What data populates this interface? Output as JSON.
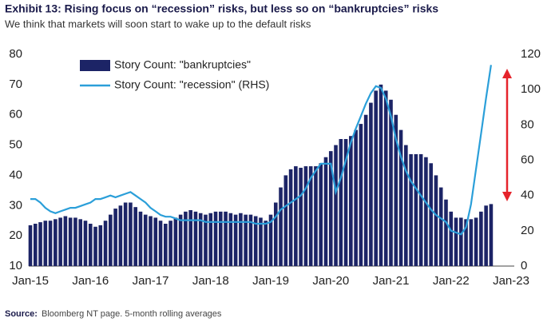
{
  "chart_data": {
    "type": "bar",
    "title": "Exhibit 13: Rising focus on “recession” risks, but less so on “bankruptcies” risks",
    "subtitle": "We think that markets will soon start to wake up to the default risks",
    "categories": [
      "Jan-15",
      null,
      null,
      null,
      null,
      null,
      null,
      null,
      null,
      null,
      null,
      null,
      "Jan-16",
      null,
      null,
      null,
      null,
      null,
      null,
      null,
      null,
      null,
      null,
      null,
      "Jan-17",
      null,
      null,
      null,
      null,
      null,
      null,
      null,
      null,
      null,
      null,
      null,
      "Jan-18",
      null,
      null,
      null,
      null,
      null,
      null,
      null,
      null,
      null,
      null,
      null,
      "Jan-19",
      null,
      null,
      null,
      null,
      null,
      null,
      null,
      null,
      null,
      null,
      null,
      "Jan-20",
      null,
      null,
      null,
      null,
      null,
      null,
      null,
      null,
      null,
      null,
      null,
      "Jan-21",
      null,
      null,
      null,
      null,
      null,
      null,
      null,
      null,
      null,
      null,
      null,
      "Jan-22",
      null,
      null,
      null,
      null,
      null,
      null,
      null,
      null,
      null,
      null,
      null,
      "Jan-23"
    ],
    "series": [
      {
        "name": "Story Count: \"bankruptcies\"",
        "type": "bar",
        "color": "#1c2466",
        "values": [
          23.5,
          24,
          24.5,
          25,
          25,
          25.5,
          26,
          26.5,
          26,
          26,
          25.5,
          25,
          24,
          23,
          23.5,
          25,
          27,
          29,
          30,
          31,
          31,
          29.5,
          28,
          27,
          26.5,
          26,
          25,
          24,
          25,
          26,
          27,
          28,
          28.5,
          28,
          27.5,
          27,
          27.5,
          28,
          28,
          28,
          27.5,
          27,
          27.5,
          27,
          27,
          26.5,
          26,
          25,
          27,
          31,
          36,
          40,
          42,
          43,
          42.5,
          43,
          43,
          43,
          44,
          46,
          48,
          50,
          52,
          52,
          53,
          55,
          57,
          60,
          64,
          68,
          70,
          68,
          65,
          60,
          55,
          50,
          47,
          47,
          47,
          46,
          44,
          40,
          36,
          32,
          28,
          26,
          26,
          25.5,
          25.5,
          26,
          28,
          30,
          30.5,
          null,
          null,
          null,
          null
        ]
      },
      {
        "name": "Story Count: \"recession\" (RHS)",
        "type": "line",
        "axis": "y2",
        "color": "#2b9fd9",
        "values": [
          38,
          38,
          36,
          33,
          31,
          30,
          31,
          32,
          33,
          33,
          34,
          35,
          36,
          38,
          38,
          39,
          40,
          39,
          40,
          41,
          42,
          40,
          38,
          36,
          33,
          31,
          29,
          28,
          28,
          27,
          26,
          26,
          26,
          26,
          26,
          25,
          25,
          25,
          25,
          25,
          25,
          25,
          25,
          25,
          25,
          24,
          24,
          24,
          25,
          28,
          32,
          34,
          36,
          38,
          40,
          44,
          50,
          54,
          58,
          58,
          58,
          42,
          50,
          60,
          70,
          78,
          85,
          92,
          98,
          102,
          101,
          95,
          85,
          72,
          62,
          54,
          48,
          44,
          40,
          36,
          32,
          29,
          27,
          25,
          20,
          19,
          18,
          22,
          35,
          55,
          75,
          95,
          114,
          null,
          null,
          null,
          null
        ]
      }
    ],
    "ylim": [
      10,
      80
    ],
    "yticks": [
      10,
      20,
      30,
      40,
      50,
      60,
      70,
      80
    ],
    "y2lim": [
      0,
      120
    ],
    "y2ticks": [
      0,
      20,
      40,
      60,
      80,
      100,
      120
    ],
    "legend": "upper left",
    "grid": false
  },
  "source": {
    "label": "Source:",
    "text": "Bloomberg NT page. 5-month rolling averages"
  }
}
